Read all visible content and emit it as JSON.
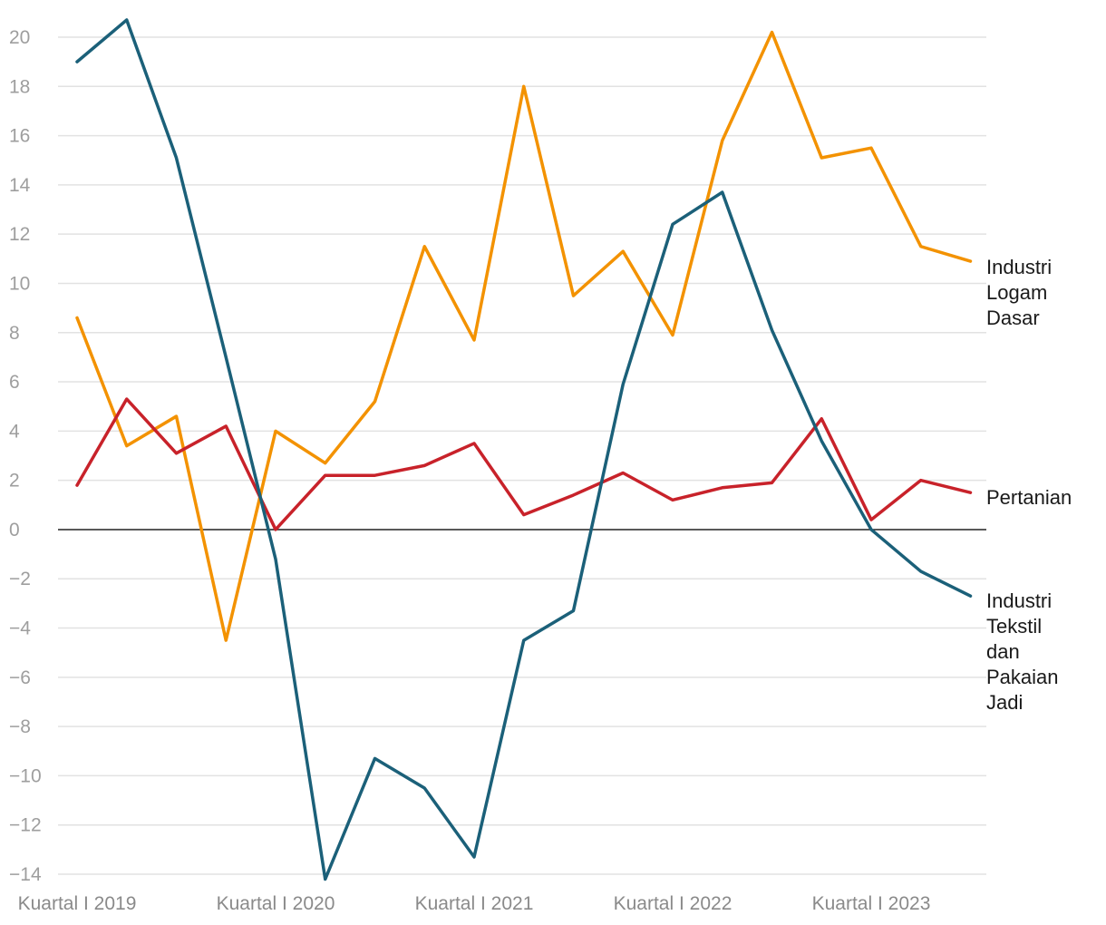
{
  "chart_data": {
    "type": "line",
    "title": "",
    "xlabel": "",
    "ylabel": "",
    "ylim": [
      -14,
      20
    ],
    "yticks": [
      20,
      18,
      16,
      14,
      12,
      10,
      8,
      6,
      4,
      2,
      0,
      -2,
      -4,
      -6,
      -8,
      -10,
      -12,
      -14
    ],
    "ytick_labels": [
      "20",
      "18",
      "16",
      "14",
      "12",
      "10",
      "8",
      "6",
      "4",
      "2",
      "0",
      "−2",
      "−4",
      "−6",
      "−8",
      "−10",
      "−12",
      "−14"
    ],
    "grid": true,
    "categories": [
      "Q1 2019",
      "Q2 2019",
      "Q3 2019",
      "Q4 2019",
      "Q1 2020",
      "Q2 2020",
      "Q3 2020",
      "Q4 2020",
      "Q1 2021",
      "Q2 2021",
      "Q3 2021",
      "Q4 2021",
      "Q1 2022",
      "Q2 2022",
      "Q3 2022",
      "Q4 2022",
      "Q1 2023",
      "Q2 2023",
      "Q3 2023"
    ],
    "x_tick_labels": [
      {
        "index": 0,
        "label": "Kuartal I 2019"
      },
      {
        "index": 4,
        "label": "Kuartal I 2020"
      },
      {
        "index": 8,
        "label": "Kuartal I 2021"
      },
      {
        "index": 12,
        "label": "Kuartal I 2022"
      },
      {
        "index": 16,
        "label": "Kuartal I 2023"
      }
    ],
    "series": [
      {
        "name": "Industri Logam Dasar",
        "label_lines": [
          "Industri",
          "Logam",
          "Dasar"
        ],
        "color": "#f39200",
        "values": [
          8.6,
          3.4,
          4.6,
          -4.5,
          4.0,
          2.7,
          5.2,
          11.5,
          7.7,
          18.0,
          9.5,
          11.3,
          7.9,
          15.8,
          20.2,
          15.1,
          15.5,
          11.5,
          10.9
        ]
      },
      {
        "name": "Pertanian",
        "label_lines": [
          "Pertanian"
        ],
        "color": "#c8222a",
        "values": [
          1.8,
          5.3,
          3.1,
          4.2,
          0.0,
          2.2,
          2.2,
          2.6,
          3.5,
          0.6,
          1.4,
          2.3,
          1.2,
          1.7,
          1.9,
          4.5,
          0.4,
          2.0,
          1.5
        ]
      },
      {
        "name": "Industri Tekstil dan Pakaian Jadi",
        "label_lines": [
          "Industri",
          "Tekstil",
          "dan",
          "Pakaian",
          "Jadi"
        ],
        "color": "#1b6079",
        "values": [
          19.0,
          20.7,
          15.1,
          7.0,
          -1.2,
          -14.2,
          -9.3,
          -10.5,
          -13.3,
          -4.5,
          -3.3,
          5.9,
          12.4,
          13.7,
          8.1,
          3.6,
          0.0,
          -1.7,
          -2.7
        ]
      }
    ]
  }
}
